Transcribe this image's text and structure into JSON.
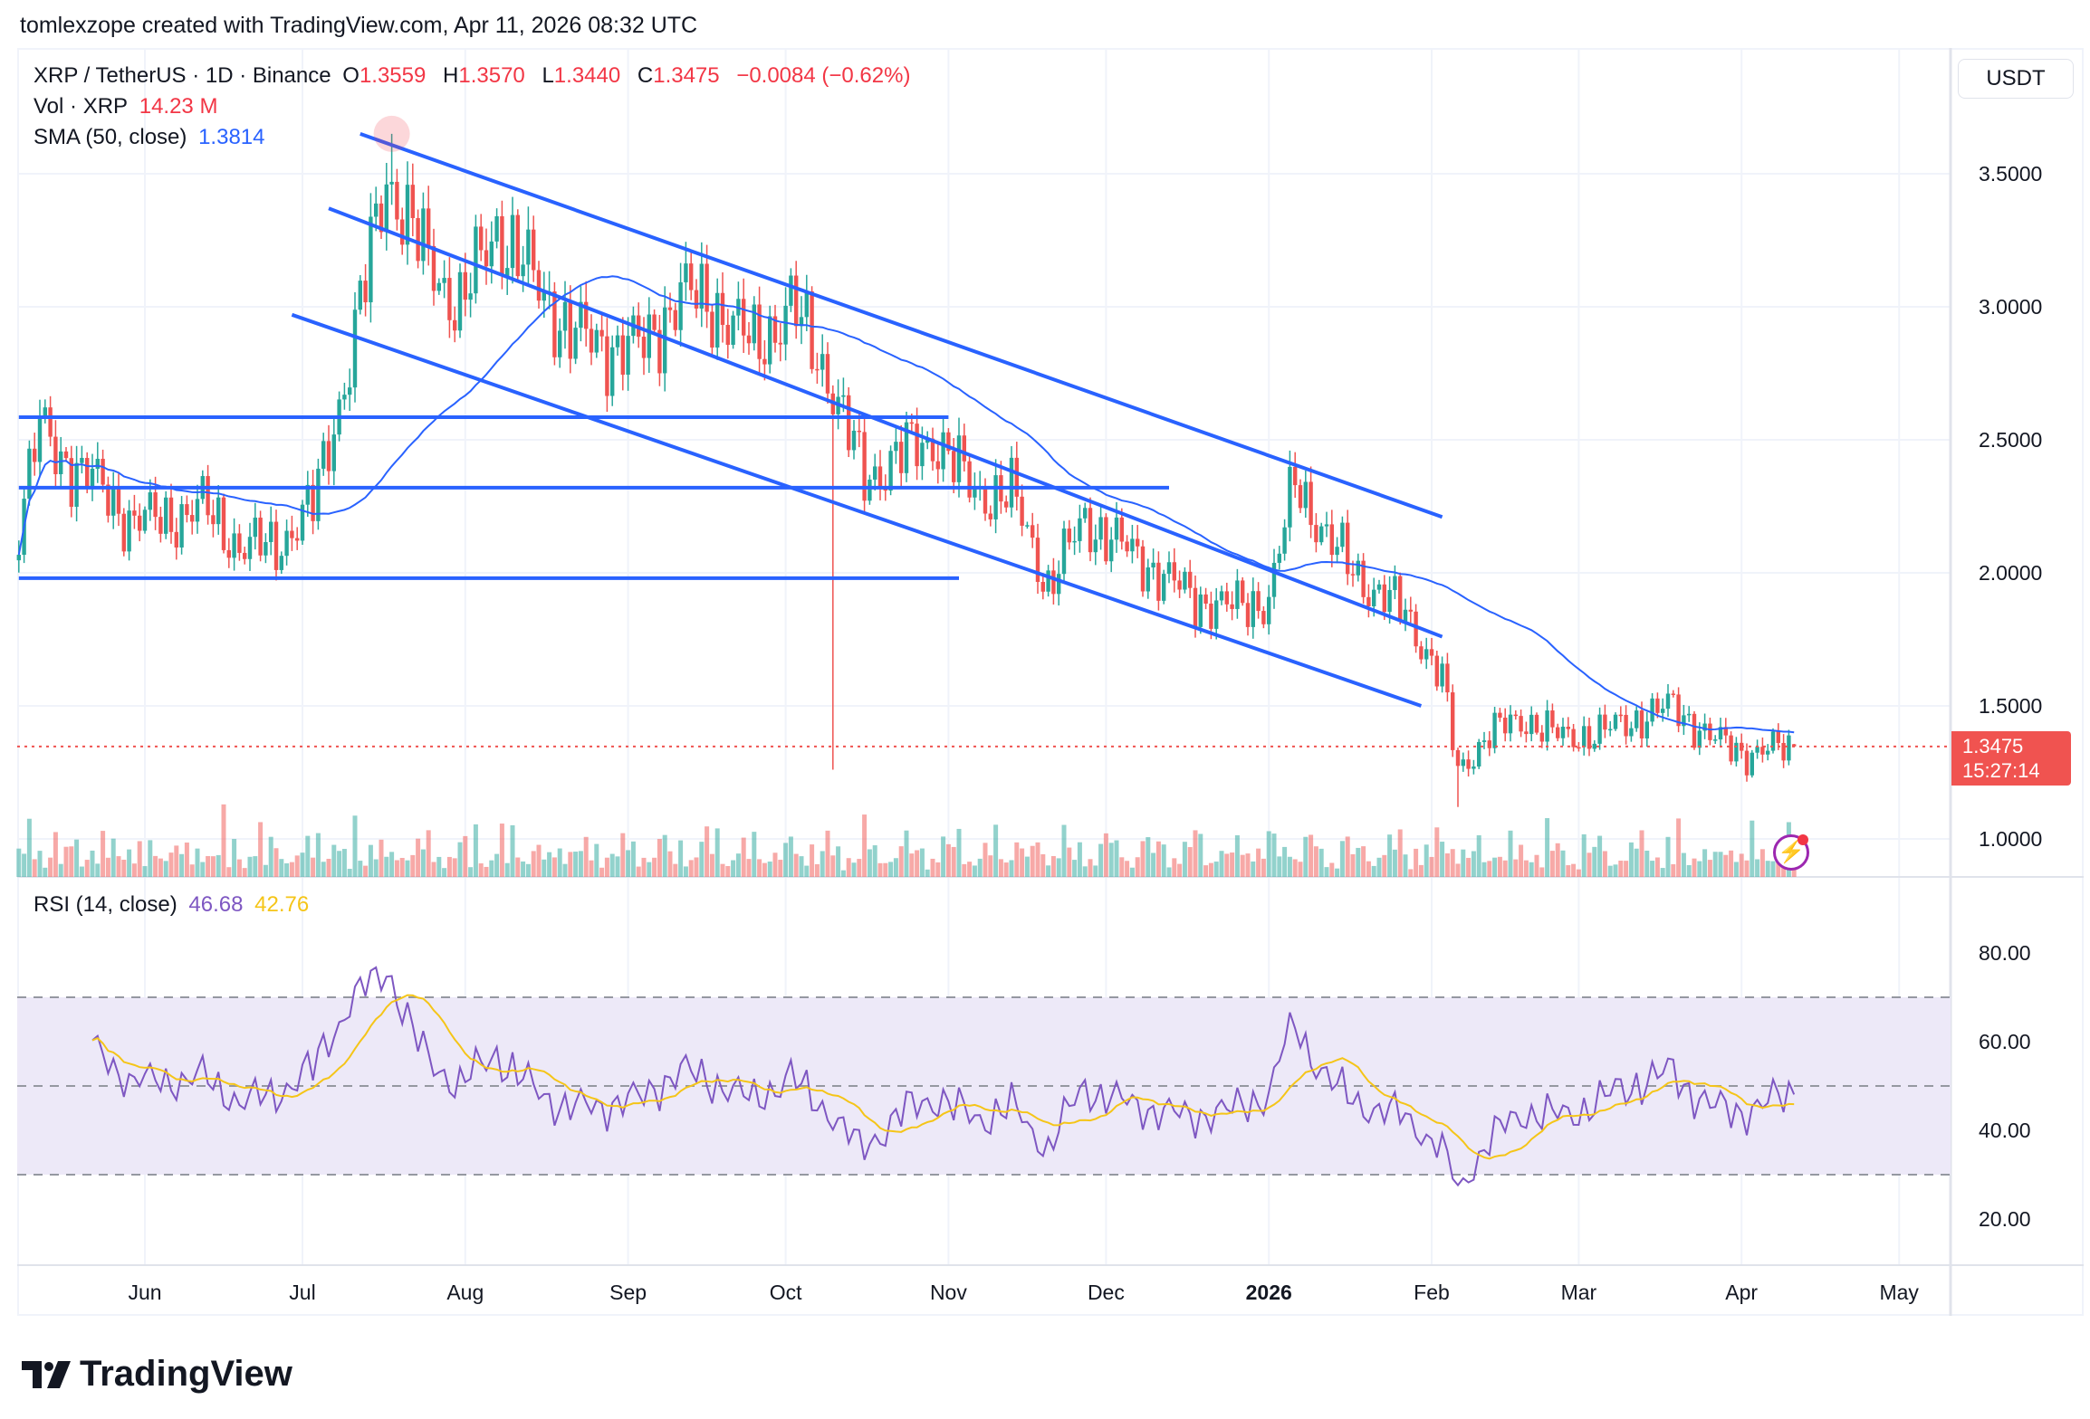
{
  "credit": "tomlexzope created with TradingView.com, Apr 11, 2026 08:32 UTC",
  "legend": {
    "symbol": "XRP / TetherUS · 1D · Binance",
    "o_label": "O",
    "o": "1.3559",
    "h_label": "H",
    "h": "1.3570",
    "l_label": "L",
    "l": "1.3440",
    "c_label": "C",
    "c": "1.3475",
    "change": "−0.0084 (−0.62%)",
    "vol_label": "Vol · XRP",
    "vol": "14.23 M",
    "sma_label": "SMA (50, close)",
    "sma": "1.3814",
    "rsi_label": "RSI (14, close)",
    "rsi": "46.68",
    "rsi_ma": "42.76"
  },
  "currency": "USDT",
  "last_price": "1.3475",
  "countdown": "15:27:14",
  "logo": "TradingView",
  "colors": {
    "up": "#26a69a",
    "down": "#ef5350",
    "sma": "#2962ff",
    "trendline": "#2962ff",
    "rsi": "#7e57c2",
    "rsi_ma": "#f5c518",
    "rsi_band": "#ede9f8",
    "last_price": "#f05350"
  },
  "icons": {
    "alert": "lightning-icon"
  },
  "chart_data": [
    {
      "type": "candlestick",
      "title": "XRP / TetherUS · 1D · Binance",
      "ylim": [
        0.87,
        3.75
      ],
      "price_ticks": [
        "3.5000",
        "3.0000",
        "2.5000",
        "2.0000",
        "1.5000",
        "1.0000"
      ],
      "x_ticks": [
        {
          "date": "2025-06-01",
          "label": "Jun"
        },
        {
          "date": "2025-07-01",
          "label": "Jul"
        },
        {
          "date": "2025-08-01",
          "label": "Aug"
        },
        {
          "date": "2025-09-01",
          "label": "Sep"
        },
        {
          "date": "2025-10-01",
          "label": "Oct"
        },
        {
          "date": "2025-11-01",
          "label": "Nov"
        },
        {
          "date": "2025-12-01",
          "label": "Dec"
        },
        {
          "date": "2026-01-01",
          "label": "2026",
          "bold": true
        },
        {
          "date": "2026-02-01",
          "label": "Feb"
        },
        {
          "date": "2026-03-01",
          "label": "Mar"
        },
        {
          "date": "2026-04-01",
          "label": "Apr"
        },
        {
          "date": "2026-05-01",
          "label": "May"
        }
      ],
      "approx_closes": [
        [
          "2025-05-08",
          2.2
        ],
        [
          "2025-05-12",
          2.55
        ],
        [
          "2025-05-15",
          2.45
        ],
        [
          "2025-05-22",
          2.35
        ],
        [
          "2025-05-29",
          2.2
        ],
        [
          "2025-06-05",
          2.2
        ],
        [
          "2025-06-12",
          2.25
        ],
        [
          "2025-06-19",
          2.1
        ],
        [
          "2025-06-26",
          2.1
        ],
        [
          "2025-07-03",
          2.25
        ],
        [
          "2025-07-10",
          2.8
        ],
        [
          "2025-07-17",
          3.5
        ],
        [
          "2025-07-24",
          3.2
        ],
        [
          "2025-07-31",
          3.0
        ],
        [
          "2025-08-07",
          3.3
        ],
        [
          "2025-08-14",
          3.1
        ],
        [
          "2025-08-21",
          2.9
        ],
        [
          "2025-08-28",
          2.85
        ],
        [
          "2025-09-04",
          2.85
        ],
        [
          "2025-09-11",
          3.05
        ],
        [
          "2025-09-18",
          3.0
        ],
        [
          "2025-09-25",
          2.85
        ],
        [
          "2025-10-02",
          3.0
        ],
        [
          "2025-10-09",
          2.75
        ],
        [
          "2025-10-16",
          2.35
        ],
        [
          "2025-10-23",
          2.45
        ],
        [
          "2025-10-30",
          2.5
        ],
        [
          "2025-11-06",
          2.3
        ],
        [
          "2025-11-13",
          2.3
        ],
        [
          "2025-11-20",
          1.95
        ],
        [
          "2025-11-27",
          2.2
        ],
        [
          "2025-12-04",
          2.1
        ],
        [
          "2025-12-11",
          2.0
        ],
        [
          "2025-12-18",
          1.9
        ],
        [
          "2025-12-25",
          1.87
        ],
        [
          "2026-01-01",
          1.9
        ],
        [
          "2026-01-06",
          2.35
        ],
        [
          "2026-01-13",
          2.1
        ],
        [
          "2026-01-20",
          1.95
        ],
        [
          "2026-01-27",
          1.85
        ],
        [
          "2026-02-03",
          1.6
        ],
        [
          "2026-02-06",
          1.25
        ],
        [
          "2026-02-12",
          1.4
        ],
        [
          "2026-02-19",
          1.45
        ],
        [
          "2026-02-26",
          1.38
        ],
        [
          "2026-03-05",
          1.4
        ],
        [
          "2026-03-12",
          1.45
        ],
        [
          "2026-03-19",
          1.5
        ],
        [
          "2026-03-26",
          1.38
        ],
        [
          "2026-04-02",
          1.32
        ],
        [
          "2026-04-11",
          1.3475
        ]
      ],
      "notable_wicks": [
        {
          "date": "2025-07-18",
          "high": 3.65
        },
        {
          "date": "2025-10-10",
          "low": 1.26
        },
        {
          "date": "2026-02-06",
          "low": 1.12
        }
      ],
      "last_candle": {
        "date": "2026-04-11",
        "open": 1.3559,
        "high": 1.357,
        "low": 1.344,
        "close": 1.3475
      },
      "indicators": [
        "Volume",
        "SMA 50"
      ],
      "drawings": [
        {
          "type": "trendline",
          "from": [
            "2025-07-12",
            3.65
          ],
          "to": [
            "2026-02-03",
            2.21
          ]
        },
        {
          "type": "trendline",
          "from": [
            "2025-07-06",
            3.37
          ],
          "to": [
            "2026-02-03",
            1.76
          ]
        },
        {
          "type": "trendline",
          "from": [
            "2025-06-29",
            2.97
          ],
          "to": [
            "2026-01-30",
            1.5
          ]
        },
        {
          "type": "horizontal",
          "from": [
            "2025-05-08",
            2.585
          ],
          "to": [
            "2025-11-01",
            2.585
          ]
        },
        {
          "type": "horizontal",
          "from": [
            "2025-05-08",
            2.32
          ],
          "to": [
            "2025-12-13",
            2.32
          ]
        },
        {
          "type": "horizontal",
          "from": [
            "2025-05-08",
            1.98
          ],
          "to": [
            "2025-11-03",
            1.98
          ]
        }
      ]
    },
    {
      "type": "line",
      "title": "RSI (14, close)",
      "ylim": [
        15,
        92
      ],
      "y_ticks": [
        "80.00",
        "60.00",
        "40.00",
        "20.00"
      ],
      "band": [
        30,
        70
      ],
      "midline": 50,
      "series": [
        {
          "name": "RSI",
          "last": 46.68
        },
        {
          "name": "RSI MA",
          "last": 42.76
        }
      ]
    }
  ]
}
